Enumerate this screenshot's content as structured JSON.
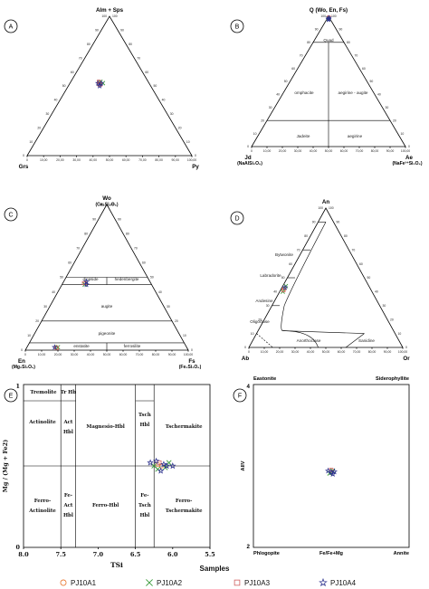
{
  "panels": {
    "A": {
      "label": "A",
      "top": "Alm + Sps",
      "left": "Grs",
      "right": "Py",
      "ticks_bottom": [
        "0",
        "10,00",
        "20,00",
        "30,00",
        "40,00",
        "50,00",
        "60,00",
        "70,00",
        "80,00",
        "90,00",
        "100,00"
      ],
      "ticks_left": [
        "100",
        "90",
        "80",
        "70",
        "60",
        "50",
        "40",
        "30",
        "20",
        "10",
        "0"
      ],
      "ticks_right": [
        "100",
        "90",
        "80",
        "70",
        "60",
        "50",
        "40",
        "30",
        "20",
        "10",
        "0"
      ]
    },
    "B": {
      "label": "B",
      "top": "Q (Wo, En, Fs)",
      "left": "Jd",
      "left_formula": "(NaAlSi₂O₆)",
      "right": "Ae",
      "right_formula": "(NaFe³⁺Si₂O₆)",
      "fields": [
        "Quad",
        "omphacite",
        "aegirine - augite",
        "Jadeite",
        "aegirine"
      ],
      "ticks_bottom": [
        "0",
        "10,00",
        "20,00",
        "30,00",
        "40,00",
        "50,00",
        "60,00",
        "70,00",
        "80,00",
        "90,00",
        "100,00"
      ],
      "ticks_left": [
        "100",
        "90",
        "80",
        "70",
        "60",
        "50",
        "40",
        "30",
        "20",
        "10",
        "0"
      ],
      "ticks_right": [
        "100",
        "90",
        "80",
        "70",
        "60",
        "50",
        "40",
        "30",
        "20",
        "10",
        "0"
      ]
    },
    "C": {
      "label": "C",
      "top": "Wo",
      "top_formula": "(Ca₂Si₂O₆)",
      "left": "En",
      "left_formula": "(Mg₂Si₂O₆)",
      "right": "Fs",
      "right_formula": "(Fe₂Si₂O₆)",
      "fields": [
        "diopside",
        "hedenbergite",
        "augite",
        "pigeonite",
        "enstatite",
        "ferrosilite"
      ],
      "ticks_bottom": [
        "0",
        "10,00",
        "20,00",
        "30,00",
        "40,00",
        "50,00",
        "60,00",
        "70,00",
        "80,00",
        "90,00",
        "100,00"
      ],
      "ticks_left": [
        "100",
        "90",
        "80",
        "70",
        "60",
        "50",
        "40",
        "30",
        "20",
        "10",
        "0"
      ],
      "ticks_right": [
        "100",
        "90",
        "80",
        "70",
        "60",
        "50",
        "40",
        "30",
        "20",
        "10",
        "0"
      ]
    },
    "D": {
      "label": "D",
      "top": "An",
      "left": "Ab",
      "right": "Or",
      "fields": [
        "Bytwonite",
        "Labradorite",
        "Andesine",
        "Oligoclase",
        "Anorthoclase",
        "Sanidine"
      ],
      "ticks_bottom": [
        "0",
        "10,00",
        "20,00",
        "30,00",
        "40,00",
        "50,00",
        "60,00",
        "70,00",
        "80,00",
        "90,00",
        "100,00"
      ],
      "ticks_left": [
        "100",
        "90",
        "80",
        "70",
        "60",
        "50",
        "40",
        "30",
        "20",
        "10",
        "0"
      ],
      "ticks_right": [
        "100",
        "90",
        "80",
        "70",
        "60",
        "50",
        "40",
        "30",
        "20",
        "10",
        "0"
      ]
    },
    "E": {
      "label": "E",
      "xlabel": "TSi",
      "ylabel": "Mg / (Mg + Fe2)",
      "xticks": [
        "8.0",
        "7.5",
        "7.0",
        "6.5",
        "6.0",
        "5.5"
      ],
      "yticks": [
        "0",
        "1"
      ],
      "fields": [
        "Tremolite",
        "Tr Hb",
        "Actinolite",
        "Act",
        "Hbl",
        "Magnesio-Hbl",
        "Tsch",
        "Hbl",
        "Tschermakite",
        "Ferro-",
        "Actinolite",
        "Fe-",
        "Act",
        "Hbl",
        "Ferro-Hbl",
        "Fe-",
        "Tsch",
        "Hbl",
        "Ferro-",
        "Tschermakite"
      ]
    },
    "F": {
      "label": "F",
      "xlabel": "Fe/Fe+Mg",
      "ylabel": "AlIV",
      "corner_tl": "Eastonite",
      "corner_tr": "Siderophyllite",
      "corner_bl": "Phlogopite",
      "corner_br": "Annite",
      "yticks": [
        "4",
        "2"
      ]
    }
  },
  "legend": {
    "title": "Samples",
    "items": [
      {
        "name": "PJ10A1",
        "color": "#e8742a",
        "marker": "circle"
      },
      {
        "name": "PJ10A2",
        "color": "#3a9a3a",
        "marker": "cross"
      },
      {
        "name": "PJ10A3",
        "color": "#d06060",
        "marker": "square"
      },
      {
        "name": "PJ10A4",
        "color": "#2a2f8c",
        "marker": "star"
      }
    ]
  },
  "chart_data": [
    {
      "type": "scatter",
      "panel": "A",
      "axes": [
        "Alm + Sps",
        "Grs",
        "Py"
      ],
      "series": [
        {
          "name": "PJ10A1",
          "points": [
            [
              52,
              30,
              18
            ],
            [
              51,
              31,
              18
            ]
          ]
        },
        {
          "name": "PJ10A2",
          "points": [
            [
              53,
              29,
              18
            ],
            [
              52,
              28,
              20
            ]
          ]
        },
        {
          "name": "PJ10A3",
          "points": [
            [
              51,
              30,
              19
            ],
            [
              53,
              30,
              17
            ]
          ]
        },
        {
          "name": "PJ10A4",
          "points": [
            [
              52,
              29,
              19
            ],
            [
              50,
              31,
              19
            ],
            [
              52,
              31,
              17
            ]
          ]
        }
      ]
    },
    {
      "type": "scatter",
      "panel": "B",
      "axes": [
        "Q (Wo, En, Fs)",
        "Jd",
        "Ae"
      ],
      "series": [
        {
          "name": "PJ10A1",
          "points": [
            [
              99,
              0.5,
              0.5
            ]
          ]
        },
        {
          "name": "PJ10A2",
          "points": [
            [
              98.5,
              0.8,
              0.7
            ]
          ]
        },
        {
          "name": "PJ10A3",
          "points": [
            [
              99,
              0.3,
              0.7
            ]
          ]
        },
        {
          "name": "PJ10A4",
          "points": [
            [
              98,
              1,
              1
            ],
            [
              97.5,
              1.2,
              1.3
            ],
            [
              98.8,
              0.4,
              0.8
            ]
          ]
        }
      ]
    },
    {
      "type": "scatter",
      "panel": "C",
      "axes": [
        "Wo",
        "En",
        "Fs"
      ],
      "series": [
        {
          "name": "PJ10A1",
          "points": [
            [
              46,
              40,
              14
            ],
            [
              2,
              80,
              18
            ]
          ]
        },
        {
          "name": "PJ10A2",
          "points": [
            [
              45,
              41,
              14
            ],
            [
              2,
              79,
              19
            ]
          ]
        },
        {
          "name": "PJ10A3",
          "points": [
            [
              46,
              41,
              13
            ],
            [
              1.5,
              80,
              18.5
            ]
          ]
        },
        {
          "name": "PJ10A4",
          "points": [
            [
              45,
              40,
              15
            ],
            [
              47,
              39,
              14
            ],
            [
              2,
              81,
              17
            ]
          ]
        }
      ]
    },
    {
      "type": "scatter",
      "panel": "D",
      "axes": [
        "An",
        "Ab",
        "Or"
      ],
      "series": [
        {
          "name": "PJ10A1",
          "points": [
            [
              42,
              56,
              2
            ]
          ]
        },
        {
          "name": "PJ10A2",
          "points": [
            [
              44,
              54,
              2
            ],
            [
              40,
              58,
              2
            ]
          ]
        },
        {
          "name": "PJ10A3",
          "points": [
            [
              41,
              57,
              2
            ]
          ]
        },
        {
          "name": "PJ10A4",
          "points": [
            [
              43,
              55,
              2
            ]
          ]
        }
      ]
    },
    {
      "type": "scatter",
      "panel": "E",
      "xlabel": "TSi",
      "ylabel": "Mg / (Mg + Fe2)",
      "xlim": [
        8.0,
        5.5
      ],
      "ylim": [
        0,
        1
      ],
      "series": [
        {
          "name": "PJ10A1",
          "points": [
            [
              6.2,
              0.51
            ],
            [
              6.15,
              0.5
            ]
          ]
        },
        {
          "name": "PJ10A2",
          "points": [
            [
              6.25,
              0.5
            ],
            [
              6.1,
              0.49
            ],
            [
              6.2,
              0.48
            ],
            [
              6.05,
              0.52
            ]
          ]
        },
        {
          "name": "PJ10A3",
          "points": [
            [
              6.18,
              0.52
            ]
          ]
        },
        {
          "name": "PJ10A4",
          "points": [
            [
              6.22,
              0.53
            ],
            [
              6.12,
              0.51
            ],
            [
              6.08,
              0.5
            ],
            [
              6.3,
              0.52
            ],
            [
              6.16,
              0.47
            ],
            [
              6.0,
              0.5
            ]
          ]
        }
      ]
    },
    {
      "type": "scatter",
      "panel": "F",
      "xlabel": "Fe/Fe+Mg",
      "ylabel": "AlIV",
      "xlim": [
        0,
        1
      ],
      "ylim": [
        2,
        4
      ],
      "series": [
        {
          "name": "PJ10A1",
          "points": [
            [
              0.5,
              2.93
            ]
          ]
        },
        {
          "name": "PJ10A2",
          "points": [
            [
              0.49,
              2.91
            ],
            [
              0.51,
              2.94
            ]
          ]
        },
        {
          "name": "PJ10A3",
          "points": [
            [
              0.5,
              2.95
            ]
          ]
        },
        {
          "name": "PJ10A4",
          "points": [
            [
              0.5,
              2.92
            ],
            [
              0.52,
              2.93
            ],
            [
              0.48,
              2.94
            ],
            [
              0.51,
              2.9
            ]
          ]
        }
      ]
    }
  ]
}
